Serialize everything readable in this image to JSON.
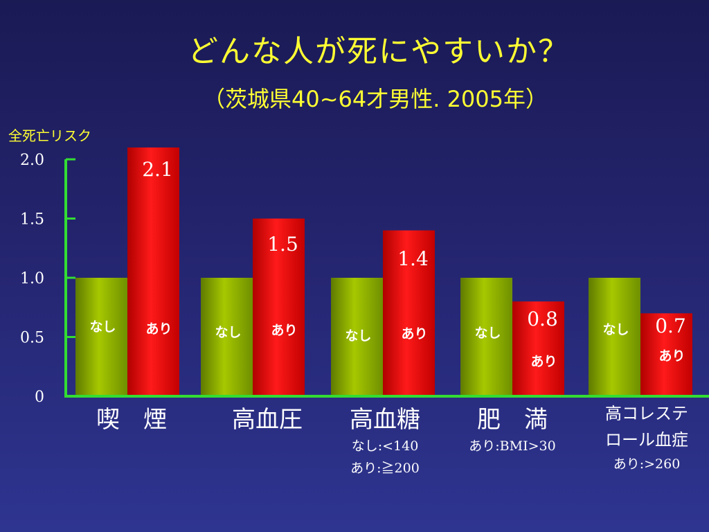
{
  "title": "どんな人が死にやすいか？",
  "subtitle": "（茨城県40~64才男性. 2005年）",
  "chart_data": {
    "type": "bar",
    "ylabel": "全死亡リスク",
    "ylim": [
      0,
      2.0
    ],
    "yticks": [
      "0",
      "0.5",
      "1.0",
      "1.5",
      "2.0"
    ],
    "ytick_values": [
      0,
      0.5,
      1.0,
      1.5,
      2.0
    ],
    "categories": [
      "喫　煙",
      "高血圧",
      "高血糖",
      "肥　満",
      "高コレステロール血症"
    ],
    "category_lines": [
      [
        "喫　煙"
      ],
      [
        "高血圧"
      ],
      [
        "高血糖"
      ],
      [
        "肥　満"
      ],
      [
        "高コレステ",
        "ロール血症"
      ]
    ],
    "category_notes": [
      [],
      [],
      [
        "なし:<140",
        "あり:≧200"
      ],
      [
        "あり:BMI>30"
      ],
      [
        "あり:>260"
      ]
    ],
    "series": [
      {
        "name": "なし",
        "color": "#8fb000",
        "values": [
          1.0,
          1.0,
          1.0,
          1.0,
          1.0
        ]
      },
      {
        "name": "あり",
        "color": "#e00000",
        "values": [
          2.1,
          1.5,
          1.4,
          0.8,
          0.7
        ]
      }
    ],
    "data_labels": [
      "2.1",
      "1.5",
      "1.4",
      "0.8",
      "0.7"
    ],
    "colors": {
      "axis": "#33dd33",
      "title": "#ffff33",
      "text": "#ffffff",
      "value_label": "#ffffff"
    }
  }
}
